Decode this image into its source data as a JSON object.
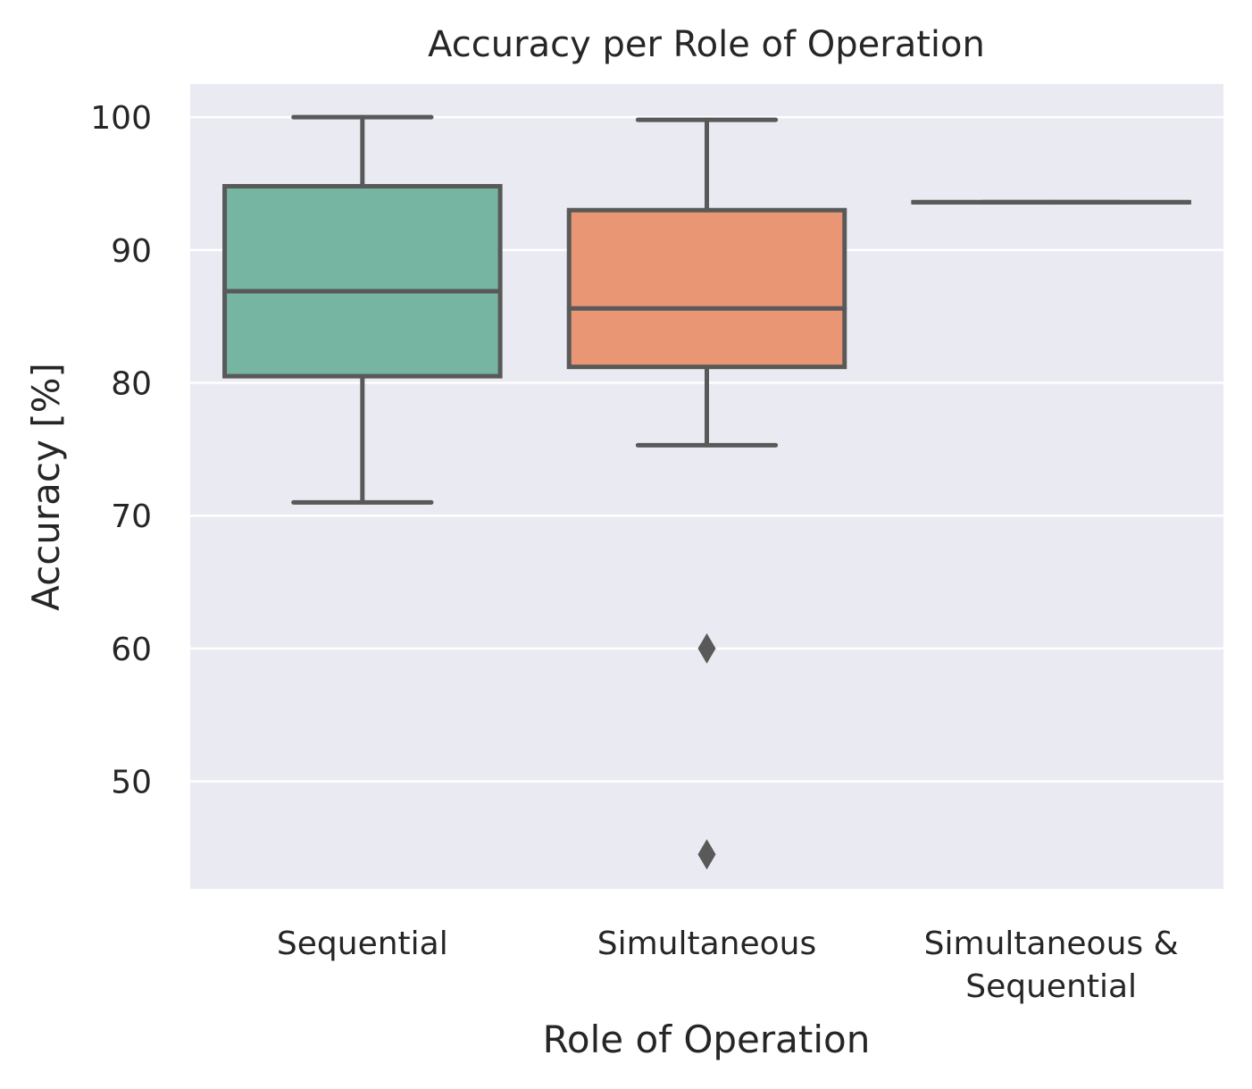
{
  "chart_data": {
    "type": "box",
    "title": "Accuracy per Role of Operation",
    "xlabel": "Role of Operation",
    "ylabel": "Accuracy [%]",
    "ylim": [
      41.9,
      102.5
    ],
    "yticks": [
      50,
      60,
      70,
      80,
      90,
      100
    ],
    "grid": true,
    "categories": [
      {
        "label_lines": [
          "Sequential"
        ]
      },
      {
        "label_lines": [
          "Simultaneous"
        ]
      },
      {
        "label_lines": [
          "Simultaneous &",
          "Sequential"
        ]
      }
    ],
    "boxes": [
      {
        "whisker_low": 71.0,
        "q1": 80.5,
        "median": 86.9,
        "q3": 94.8,
        "whisker_high": 100.0,
        "outliers": [],
        "color": "#75b5a1"
      },
      {
        "whisker_low": 75.3,
        "q1": 81.2,
        "median": 85.6,
        "q3": 93.0,
        "whisker_high": 99.8,
        "outliers": [
          60.0,
          44.5
        ],
        "color": "#e99674"
      },
      {
        "whisker_low": 93.6,
        "q1": 93.6,
        "median": 93.6,
        "q3": 93.6,
        "whisker_high": 93.6,
        "outliers": [],
        "color": "#8da0cb"
      }
    ],
    "colors": {
      "plot_background": "#eaeaf2",
      "grid": "#ffffff",
      "line": "#595959"
    }
  }
}
